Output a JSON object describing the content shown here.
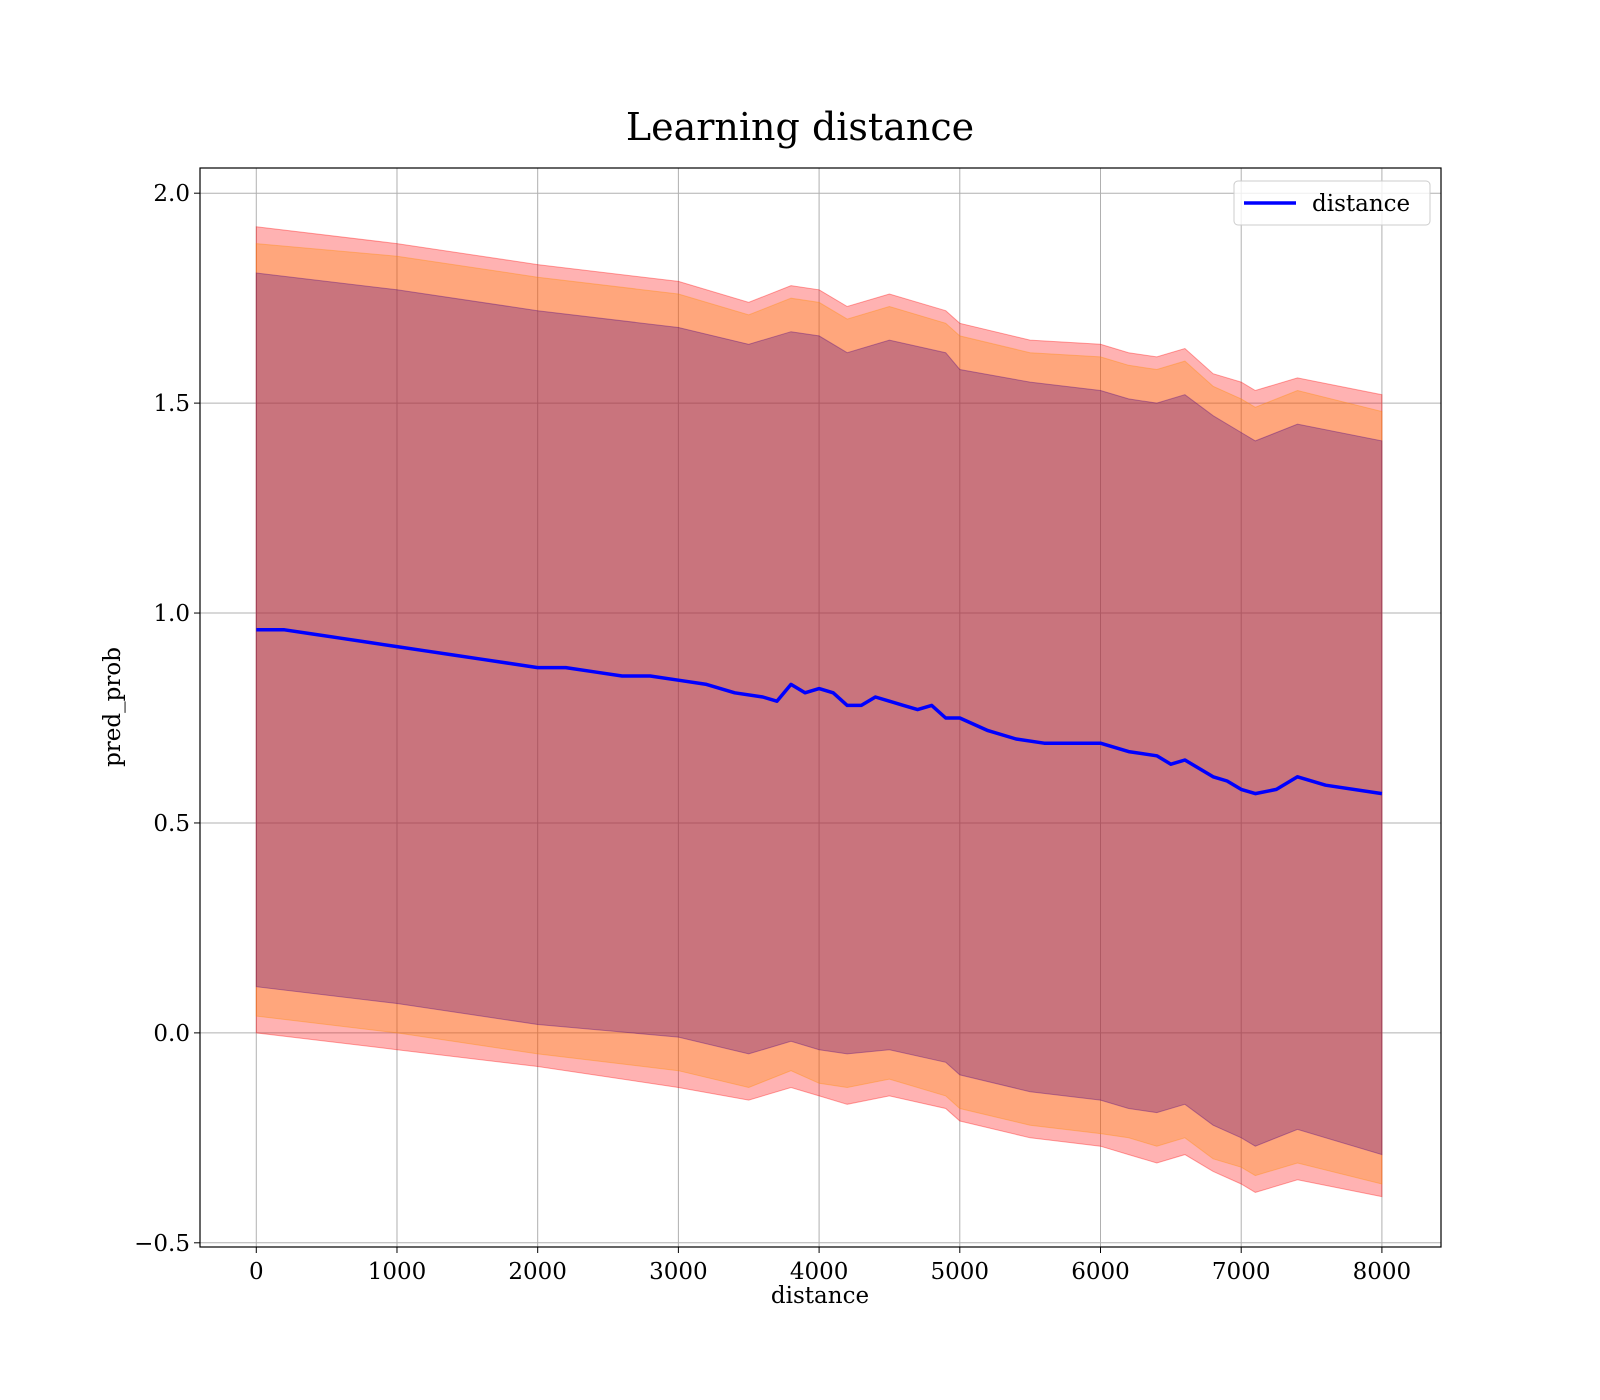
{
  "chart_data": {
    "type": "line",
    "title": "Learning distance",
    "xlabel": "distance",
    "ylabel": "pred_prob",
    "xlim": [
      -400,
      8420
    ],
    "ylim": [
      -0.51,
      2.06
    ],
    "xticks": [
      0,
      1000,
      2000,
      3000,
      4000,
      5000,
      6000,
      7000,
      8000
    ],
    "xtick_labels": [
      "0",
      "1000",
      "2000",
      "3000",
      "4000",
      "5000",
      "6000",
      "7000",
      "8000"
    ],
    "yticks": [
      -0.5,
      0.0,
      0.5,
      1.0,
      1.5,
      2.0
    ],
    "ytick_labels": [
      "−0.5",
      "0.0",
      "0.5",
      "1.0",
      "1.5",
      "2.0"
    ],
    "grid": true,
    "legend_position": "top-right",
    "series": [
      {
        "name": "distance",
        "color": "#0000ff",
        "x": [
          0,
          200,
          400,
          600,
          800,
          1000,
          1200,
          1400,
          1600,
          1800,
          2000,
          2200,
          2400,
          2600,
          2800,
          3000,
          3200,
          3400,
          3600,
          3700,
          3800,
          3900,
          4000,
          4100,
          4200,
          4300,
          4400,
          4500,
          4600,
          4700,
          4800,
          4900,
          5000,
          5200,
          5400,
          5600,
          5800,
          6000,
          6200,
          6400,
          6500,
          6600,
          6700,
          6800,
          6900,
          7000,
          7100,
          7250,
          7400,
          7600,
          8000
        ],
        "y": [
          0.96,
          0.96,
          0.95,
          0.94,
          0.93,
          0.92,
          0.91,
          0.9,
          0.89,
          0.88,
          0.87,
          0.87,
          0.86,
          0.85,
          0.85,
          0.84,
          0.83,
          0.81,
          0.8,
          0.79,
          0.83,
          0.81,
          0.82,
          0.81,
          0.78,
          0.78,
          0.8,
          0.79,
          0.78,
          0.77,
          0.78,
          0.75,
          0.75,
          0.72,
          0.7,
          0.69,
          0.69,
          0.69,
          0.67,
          0.66,
          0.64,
          0.65,
          0.63,
          0.61,
          0.6,
          0.58,
          0.57,
          0.58,
          0.61,
          0.59,
          0.57
        ]
      }
    ],
    "bands": [
      {
        "color": "#ff0000",
        "opacity": 0.3,
        "x": [
          0,
          1000,
          2000,
          3000,
          3500,
          3800,
          4000,
          4200,
          4500,
          4900,
          5000,
          5500,
          6000,
          6200,
          6400,
          6600,
          6800,
          7000,
          7100,
          7400,
          8000
        ],
        "upper": [
          1.92,
          1.88,
          1.83,
          1.79,
          1.74,
          1.78,
          1.77,
          1.73,
          1.76,
          1.72,
          1.69,
          1.65,
          1.64,
          1.62,
          1.61,
          1.63,
          1.57,
          1.55,
          1.53,
          1.56,
          1.52
        ],
        "lower": [
          0.0,
          -0.04,
          -0.08,
          -0.13,
          -0.16,
          -0.13,
          -0.15,
          -0.17,
          -0.15,
          -0.18,
          -0.21,
          -0.25,
          -0.27,
          -0.29,
          -0.31,
          -0.29,
          -0.33,
          -0.36,
          -0.38,
          -0.35,
          -0.39
        ]
      },
      {
        "color": "#ff8c00",
        "opacity": 0.3,
        "x": [
          0,
          1000,
          2000,
          3000,
          3500,
          3800,
          4000,
          4200,
          4500,
          4900,
          5000,
          5500,
          6000,
          6200,
          6400,
          6600,
          6800,
          7000,
          7100,
          7400,
          8000
        ],
        "upper": [
          1.88,
          1.85,
          1.8,
          1.76,
          1.71,
          1.75,
          1.74,
          1.7,
          1.73,
          1.69,
          1.66,
          1.62,
          1.61,
          1.59,
          1.58,
          1.6,
          1.54,
          1.51,
          1.49,
          1.53,
          1.48
        ],
        "lower": [
          0.04,
          0.0,
          -0.05,
          -0.09,
          -0.13,
          -0.09,
          -0.12,
          -0.13,
          -0.11,
          -0.15,
          -0.18,
          -0.22,
          -0.24,
          -0.25,
          -0.27,
          -0.25,
          -0.3,
          -0.32,
          -0.34,
          -0.31,
          -0.36
        ]
      },
      {
        "color": "#4b0082",
        "opacity": 0.3,
        "x": [
          0,
          1000,
          2000,
          3000,
          3500,
          3800,
          4000,
          4200,
          4500,
          4900,
          5000,
          5500,
          6000,
          6200,
          6400,
          6600,
          6800,
          7000,
          7100,
          7400,
          8000
        ],
        "upper": [
          1.81,
          1.77,
          1.72,
          1.68,
          1.64,
          1.67,
          1.66,
          1.62,
          1.65,
          1.62,
          1.58,
          1.55,
          1.53,
          1.51,
          1.5,
          1.52,
          1.47,
          1.43,
          1.41,
          1.45,
          1.41
        ],
        "lower": [
          0.11,
          0.07,
          0.02,
          -0.01,
          -0.05,
          -0.02,
          -0.04,
          -0.05,
          -0.04,
          -0.07,
          -0.1,
          -0.14,
          -0.16,
          -0.18,
          -0.19,
          -0.17,
          -0.22,
          -0.25,
          -0.27,
          -0.23,
          -0.29
        ]
      }
    ]
  }
}
